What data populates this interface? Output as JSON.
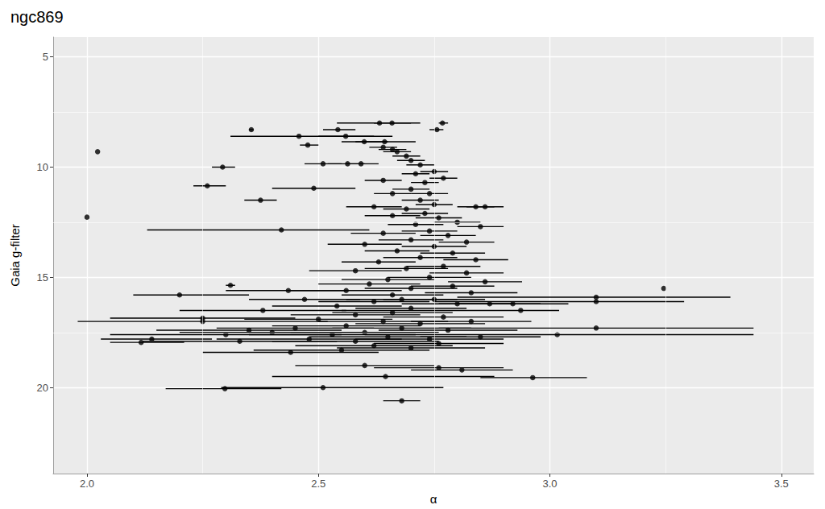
{
  "chart_data": {
    "type": "scatter",
    "title": "ngc869",
    "x_label": "α",
    "y_label": "Gaia g-filter",
    "color": "#000000",
    "marker": "circle",
    "grid": true,
    "xlim": [
      1.927,
      3.57
    ],
    "xticks": [
      {
        "value": 2,
        "label": "2.0"
      },
      {
        "value": 2.5,
        "label": "2.5"
      },
      {
        "value": 3,
        "label": "3.0"
      },
      {
        "value": 3.5,
        "label": "3.5"
      }
    ],
    "ylim": [
      23.9,
      4.1
    ],
    "yticks": [
      5,
      10,
      15,
      20
    ],
    "x": [
      2.632,
      2.659,
      2.768,
      2.756,
      2.542,
      2.355,
      2.458,
      2.559,
      2.477,
      2.599,
      2.643,
      2.023,
      2.293,
      2.51,
      2.563,
      2.592,
      2.26,
      2.49,
      2.375,
      2.0,
      2.42,
      2.31,
      2.435,
      2.2,
      3.246,
      3.1,
      3.1,
      3.1,
      3.016,
      2.937,
      2.963,
      2.68,
      2.298,
      2.51,
      2.117,
      2.14,
      2.25,
      2.645,
      2.76,
      2.81,
      2.6,
      2.64,
      2.66,
      2.67,
      2.69,
      2.7,
      2.72,
      2.75,
      2.77,
      2.71,
      2.73,
      2.7,
      2.74,
      2.72,
      2.75,
      2.69,
      2.84,
      2.86,
      2.64,
      2.66,
      2.73,
      2.62,
      2.76,
      2.8,
      2.71,
      2.66,
      2.74,
      2.85,
      2.78,
      2.7,
      2.64,
      2.82,
      2.75,
      2.67,
      2.6,
      2.79,
      2.72,
      2.84,
      2.63,
      2.77,
      2.69,
      2.58,
      2.82,
      2.74,
      2.65,
      2.86,
      2.61,
      2.79,
      2.7,
      2.56,
      2.83,
      2.66,
      2.75,
      2.62,
      2.8,
      2.54,
      2.7,
      2.87,
      2.66,
      2.58,
      2.77,
      2.5,
      2.64,
      2.83,
      2.72,
      2.56,
      2.45,
      2.68,
      2.6,
      2.78,
      2.4,
      2.53,
      2.65,
      2.35,
      2.74,
      2.58,
      2.48,
      2.85,
      2.62,
      2.7,
      2.55,
      2.44,
      2.3,
      2.38,
      2.47,
      2.92,
      2.25,
      2.33,
      2.76,
      2.68
    ],
    "values": [
      8.0,
      8.0,
      8.0,
      8.3,
      8.3,
      8.3,
      8.6,
      8.6,
      9.0,
      8.85,
      8.85,
      9.3,
      10.0,
      9.85,
      9.85,
      9.85,
      10.85,
      10.96,
      11.5,
      12.27,
      12.85,
      15.36,
      15.6,
      15.8,
      15.5,
      15.9,
      16.1,
      17.3,
      17.6,
      16.5,
      19.55,
      20.6,
      20.05,
      20.0,
      17.95,
      17.8,
      16.85,
      19.5,
      19.1,
      19.2,
      19.0,
      9.1,
      9.2,
      9.3,
      9.5,
      9.7,
      9.9,
      10.2,
      10.5,
      10.3,
      10.7,
      11.0,
      11.2,
      11.5,
      11.7,
      11.9,
      11.8,
      11.8,
      10.6,
      11.2,
      12.1,
      11.8,
      12.3,
      12.5,
      12.6,
      12.2,
      12.9,
      12.7,
      13.1,
      13.3,
      13.0,
      13.4,
      13.6,
      13.8,
      13.5,
      13.9,
      14.1,
      14.2,
      14.3,
      14.5,
      14.6,
      14.7,
      14.8,
      15.0,
      15.1,
      15.2,
      15.3,
      15.4,
      15.5,
      15.6,
      15.7,
      15.8,
      16.0,
      16.1,
      16.2,
      16.3,
      16.4,
      16.2,
      16.6,
      16.7,
      16.8,
      16.9,
      17.0,
      17.0,
      17.1,
      17.2,
      17.3,
      17.3,
      17.5,
      17.4,
      17.5,
      17.6,
      17.7,
      17.4,
      17.8,
      17.9,
      17.8,
      17.7,
      18.1,
      18.2,
      18.3,
      18.4,
      17.6,
      16.5,
      16.0,
      16.2,
      17.0,
      17.9,
      18.0,
      16.0
    ],
    "x_lower": [
      2.54,
      2.62,
      2.76,
      2.74,
      2.51,
      2.35,
      2.31,
      2.5,
      2.46,
      2.55,
      2.58,
      2.023,
      2.27,
      2.47,
      2.52,
      2.56,
      2.23,
      2.4,
      2.34,
      2.0,
      2.13,
      2.3,
      2.3,
      2.1,
      3.246,
      2.8,
      2.75,
      2.76,
      2.6,
      2.55,
      2.85,
      2.64,
      2.17,
      2.29,
      2.05,
      2.03,
      2.05,
      2.4,
      2.62,
      2.7,
      2.45,
      2.61,
      2.63,
      2.64,
      2.66,
      2.67,
      2.69,
      2.72,
      2.74,
      2.68,
      2.7,
      2.66,
      2.7,
      2.68,
      2.71,
      2.64,
      2.8,
      2.82,
      2.6,
      2.62,
      2.68,
      2.56,
      2.71,
      2.75,
      2.65,
      2.6,
      2.68,
      2.8,
      2.72,
      2.63,
      2.57,
      2.76,
      2.68,
      2.6,
      2.52,
      2.72,
      2.64,
      2.77,
      2.55,
      2.69,
      2.6,
      2.48,
      2.74,
      2.65,
      2.55,
      2.78,
      2.5,
      2.7,
      2.6,
      2.44,
      2.73,
      2.55,
      2.64,
      2.5,
      2.68,
      2.4,
      2.58,
      2.76,
      2.53,
      2.44,
      2.64,
      2.34,
      2.5,
      2.7,
      2.58,
      2.4,
      2.28,
      2.53,
      2.44,
      2.63,
      2.2,
      2.35,
      2.48,
      2.15,
      2.58,
      2.4,
      2.28,
      2.72,
      2.45,
      2.54,
      2.36,
      2.25,
      2.05,
      2.2,
      2.35,
      2.8,
      1.98,
      2.12,
      2.62,
      2.56
    ],
    "x_upper": [
      2.72,
      2.7,
      2.78,
      2.77,
      2.58,
      2.36,
      2.66,
      2.62,
      2.5,
      2.65,
      2.71,
      2.023,
      2.32,
      2.55,
      2.6,
      2.63,
      2.3,
      2.58,
      2.41,
      2.0,
      2.61,
      2.32,
      2.56,
      2.35,
      3.246,
      3.39,
      3.29,
      3.44,
      3.44,
      3.02,
      3.08,
      2.72,
      2.42,
      2.77,
      2.21,
      2.27,
      2.45,
      2.88,
      2.9,
      2.92,
      2.75,
      2.67,
      2.69,
      2.7,
      2.72,
      2.73,
      2.75,
      2.78,
      2.8,
      2.74,
      2.76,
      2.74,
      2.78,
      2.76,
      2.79,
      2.74,
      2.88,
      2.9,
      2.68,
      2.7,
      2.78,
      2.68,
      2.81,
      2.85,
      2.77,
      2.72,
      2.8,
      2.9,
      2.84,
      2.77,
      2.71,
      2.88,
      2.82,
      2.74,
      2.68,
      2.86,
      2.8,
      2.91,
      2.71,
      2.85,
      2.78,
      2.68,
      2.9,
      2.83,
      2.75,
      2.94,
      2.72,
      2.88,
      2.8,
      2.68,
      2.93,
      2.77,
      2.86,
      2.74,
      2.92,
      2.68,
      2.82,
      2.98,
      2.79,
      2.72,
      2.9,
      2.66,
      2.78,
      2.96,
      2.86,
      2.72,
      2.62,
      2.83,
      2.76,
      2.93,
      2.6,
      2.71,
      2.82,
      2.55,
      2.9,
      2.76,
      2.68,
      2.98,
      2.79,
      2.86,
      2.74,
      2.63,
      2.55,
      2.56,
      2.59,
      3.04,
      2.52,
      2.54,
      2.9,
      2.8
    ]
  }
}
